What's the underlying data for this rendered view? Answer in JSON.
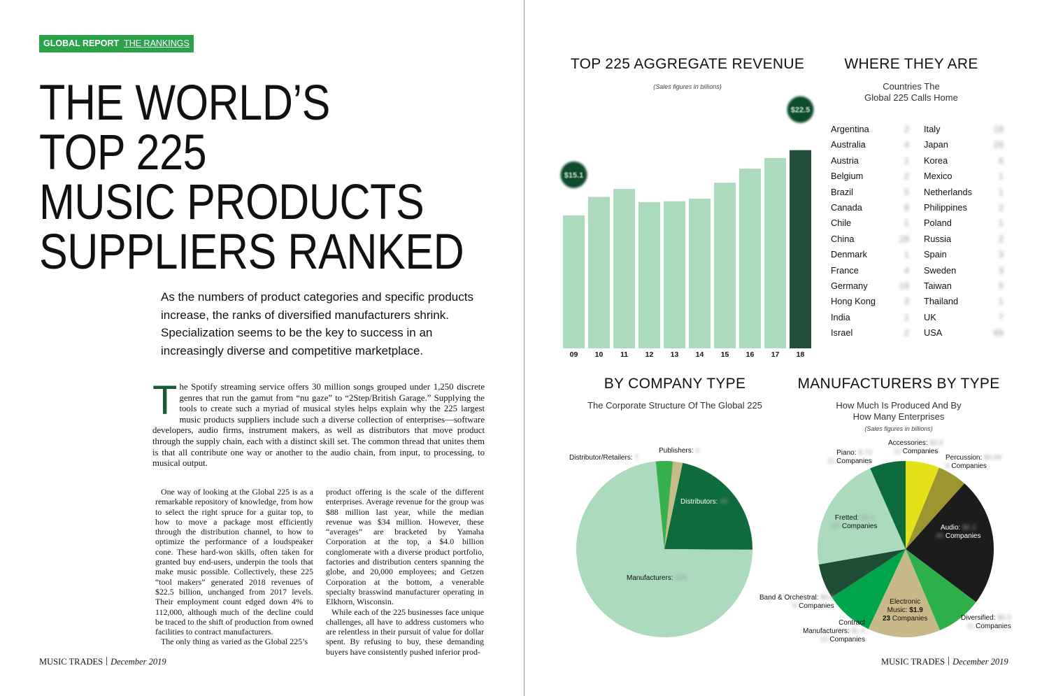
{
  "tag": {
    "bold": "GLOBAL REPORT",
    "rest": "THE RANKINGS"
  },
  "headline": [
    "THE WORLD’S",
    "TOP 225",
    "MUSIC PRODUCTS",
    "SUPPLIERS RANKED"
  ],
  "deck": "As the numbers of product categories and specific products increase, the ranks of diversified manufacturers shrink. Specialization seems to be the key to success in an increasingly diverse and competitive marketplace.",
  "lead": {
    "dropcap": "T",
    "text": "he Spotify streaming service offers 30 million songs grouped under 1,250 discrete genres that run the gamut from “nu gaze” to “2Step/British Garage.” Supplying the tools to create such a myriad of musical styles helps explain why the 225 largest music products suppliers include such a diverse collection of enterprises—software developers, audio firms, instrument makers, as well as distributors that move product through the supply chain, each with a distinct skill set. The common thread that unites them is that all contribute one way or another to the audio chain, from input, to processing, to musical output."
  },
  "col1": [
    "One way of looking at the Global 225 is as a remarkable repository of knowledge, from how to select the right spruce for a guitar top, to how to move a package most efficiently through the distribution channel, to how to optimize the performance of a loudspeaker cone. These hard-won skills, often taken for granted buy end-users, underpin the tools that make music possible. Collectively, these 225 “tool makers” generated 2018 revenues of $22.5 billion, unchanged from 2017 levels. Their employment count edged down 4% to 112,000, although much of the decline could be traced to the shift of production from owned facilities to contract manufacturers.",
    "The only thing as varied as the Global 225’s"
  ],
  "col2": [
    "product offering is the scale of the different enterprises. Average revenue for the group was $88 million last year, while the median revenue was $34 million. However, these “averages” are bracketed by Yamaha Corporation at the top, a $4.0 billion conglomerate with a diverse product portfolio, factories and distribution centers spanning the globe, and 20,000 employees; and Getzen Corporation at the bottom, a venerable specialty brasswind manufacturer operating in Elkhorn, Wisconsin.",
    "While each of the 225 businesses face unique challenges, all have to address customers who are relentless in their pursuit of value for dollar spent. By refusing to buy, these demanding buyers have consistently pushed inferior prod-"
  ],
  "footer_left": {
    "brand": "MUSIC TRADES",
    "date": "December 2019"
  },
  "footer_right": {
    "brand": "MUSIC TRADES",
    "date": "December 2019"
  },
  "revenue_chart": {
    "title": "TOP 225 AGGREGATE REVENUE",
    "note": "(Sales figures in billions)",
    "first_label": "$15.1",
    "last_label": "$22.5"
  },
  "where": {
    "title": "WHERE THEY ARE",
    "subtitle_1": "Countries The",
    "subtitle_2": "Global 225 Calls Home",
    "left": [
      {
        "name": "Argentina",
        "count": "2"
      },
      {
        "name": "Australia",
        "count": "4"
      },
      {
        "name": "Austria",
        "count": "1"
      },
      {
        "name": "Belgium",
        "count": "2"
      },
      {
        "name": "Brazil",
        "count": "5"
      },
      {
        "name": "Canada",
        "count": "8"
      },
      {
        "name": "Chile",
        "count": "1"
      },
      {
        "name": "China",
        "count": "28"
      },
      {
        "name": "Denmark",
        "count": "1"
      },
      {
        "name": "France",
        "count": "4"
      },
      {
        "name": "Germany",
        "count": "19"
      },
      {
        "name": "Hong Kong",
        "count": "3"
      },
      {
        "name": "India",
        "count": "1"
      },
      {
        "name": "Israel",
        "count": "2"
      }
    ],
    "right": [
      {
        "name": "Italy",
        "count": "18"
      },
      {
        "name": "Japan",
        "count": "26"
      },
      {
        "name": "Korea",
        "count": "6"
      },
      {
        "name": "Mexico",
        "count": "1"
      },
      {
        "name": "Netherlands",
        "count": "1"
      },
      {
        "name": "Philippines",
        "count": "2"
      },
      {
        "name": "Poland",
        "count": "1"
      },
      {
        "name": "Russia",
        "count": "2"
      },
      {
        "name": "Spain",
        "count": "3"
      },
      {
        "name": "Sweden",
        "count": "3"
      },
      {
        "name": "Taiwan",
        "count": "5"
      },
      {
        "name": "Thailand",
        "count": "1"
      },
      {
        "name": "UK",
        "count": "7"
      },
      {
        "name": "USA",
        "count": "69"
      }
    ]
  },
  "company_type": {
    "title": "BY COMPANY TYPE",
    "subtitle": "The Corporate Structure Of The Global 225"
  },
  "manufacturers_type": {
    "title": "MANUFACTURERS BY TYPE",
    "subtitle_1": "How Much Is Produced And By",
    "subtitle_2": "How Many Enterprises",
    "note": "(Sales figures in billions)",
    "companies_word": "Companies"
  },
  "colors": {
    "accent_green": "#2aa24a",
    "bar_light": "#acdabd",
    "bar_dark": "#20503a",
    "dropcap": "#1a5a34"
  },
  "chart_data": [
    {
      "type": "bar",
      "title": "TOP 225 AGGREGATE REVENUE",
      "categories": [
        "09",
        "10",
        "11",
        "12",
        "13",
        "14",
        "15",
        "16",
        "17",
        "18"
      ],
      "values": [
        15.1,
        17.2,
        18.1,
        16.6,
        16.7,
        17.0,
        18.8,
        20.4,
        21.6,
        22.5
      ],
      "ylim": [
        0,
        27
      ],
      "highlight_index": 9,
      "data_labels": {
        "0": "$15.1",
        "9": "$22.5"
      }
    },
    {
      "type": "pie",
      "title": "BY COMPANY TYPE",
      "slices": [
        {
          "label": "Distributors:",
          "value": 49,
          "value_label": "49",
          "color": "#0e6b3c"
        },
        {
          "label": "Manufacturers:",
          "value": 165,
          "value_label": "165",
          "color": "#acdabd"
        },
        {
          "label": "Distributor/Retailers:",
          "value": 7,
          "value_label": "7",
          "color": "#37b04e"
        },
        {
          "label": "Publishers:",
          "value": 4,
          "value_label": "4",
          "color": "#c8bb8a"
        }
      ]
    },
    {
      "type": "pie",
      "title": "MANUFACTURERS BY TYPE",
      "slices": [
        {
          "label": "Accessories:",
          "sales": "$2.6",
          "companies": "11",
          "value": 6.3,
          "color": "#e6e21a"
        },
        {
          "label": "Percussion:",
          "sales": "$0.94",
          "companies": "8",
          "value": 5.5,
          "color": "#9c9630"
        },
        {
          "label": "Audio:",
          "sales": "$6.2",
          "companies": "40",
          "value": 24,
          "color": "#1c1c1c"
        },
        {
          "label": "Diversified:",
          "sales": "$6.0",
          "companies": "11",
          "value": 8.5,
          "color": "#2daf4a"
        },
        {
          "label": "Electronic Music:",
          "sales": "$1.9",
          "companies": "23",
          "value": 13.5,
          "color": "#c8b98a"
        },
        {
          "label": "Contract Manufacturers:",
          "sales": "$1.4",
          "companies": "13",
          "value": 9,
          "color": "#00a44a"
        },
        {
          "label": "Band & Orchestral:",
          "sales": "$0.9",
          "companies": "8",
          "value": 6.5,
          "color": "#1e4f36"
        },
        {
          "label": "Fretted:",
          "sales": "$3.1",
          "companies": "37",
          "value": 21.5,
          "color": "#acdabd"
        },
        {
          "label": "Piano:",
          "sales": "$.73",
          "companies": "11",
          "value": 6.7,
          "color": "#0b6b3a"
        }
      ]
    }
  ]
}
